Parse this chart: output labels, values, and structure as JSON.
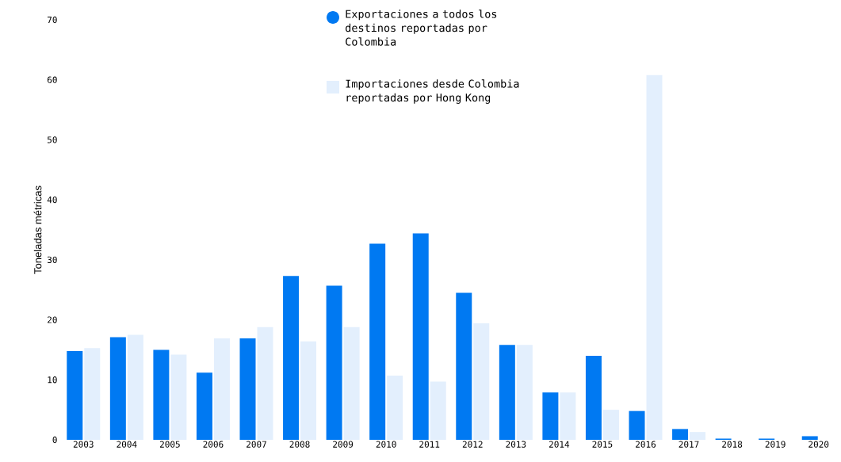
{
  "chart_data": {
    "type": "bar",
    "ylabel": "Toneladas métricas",
    "categories": [
      "2003",
      "2004",
      "2005",
      "2006",
      "2007",
      "2008",
      "2009",
      "2010",
      "2011",
      "2012",
      "2013",
      "2014",
      "2015",
      "2016",
      "2017",
      "2018",
      "2019",
      "2020"
    ],
    "series": [
      {
        "name": "Exportaciones a todos los destinos reportadas por Colombia",
        "color": "#0079f2",
        "values": [
          14.8,
          17.1,
          15.0,
          11.2,
          16.9,
          27.3,
          25.7,
          32.7,
          34.4,
          24.5,
          15.8,
          7.9,
          14.0,
          4.8,
          1.8,
          0.2,
          0.2,
          0.6
        ]
      },
      {
        "name": "Importaciones desde Colombia reportadas por Hong Kong",
        "color": "#e3effd",
        "values": [
          15.3,
          17.5,
          14.2,
          16.9,
          18.8,
          16.4,
          18.8,
          10.7,
          9.7,
          19.4,
          15.8,
          7.9,
          5.0,
          60.8,
          1.3,
          null,
          null,
          null
        ]
      }
    ],
    "ylim": [
      0,
      70
    ],
    "yticks": [
      0,
      10,
      20,
      30,
      40,
      50,
      60,
      70
    ],
    "grid": false,
    "legend": "top"
  }
}
